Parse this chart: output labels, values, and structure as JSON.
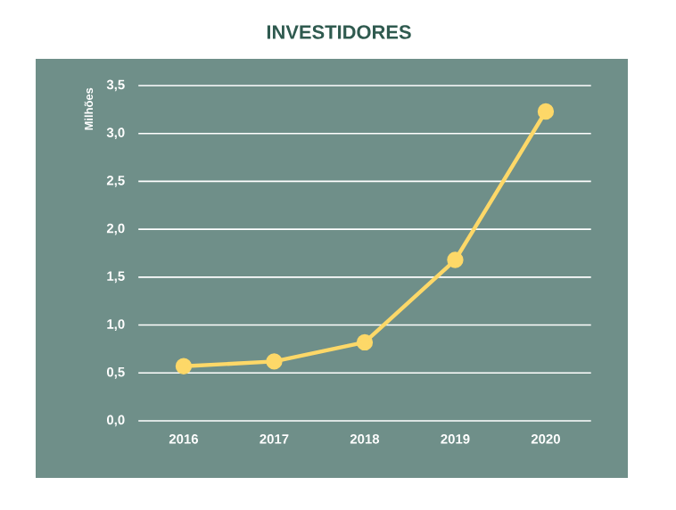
{
  "chart_data": {
    "type": "line",
    "title": "INVESTIDORES",
    "ylabel": "Milhões",
    "categories": [
      "2016",
      "2017",
      "2018",
      "2019",
      "2020"
    ],
    "series": [
      {
        "color": "#fdd868",
        "values": [
          0.57,
          0.62,
          0.82,
          1.68,
          3.23
        ]
      }
    ],
    "ylim": [
      0,
      3.5
    ],
    "yticks": [
      {
        "value": 0,
        "label": "0,0"
      },
      {
        "value": 0.5,
        "label": "0,5"
      },
      {
        "value": 1,
        "label": "1,0"
      },
      {
        "value": 1.5,
        "label": "1,5"
      },
      {
        "value": 2,
        "label": "2,0"
      },
      {
        "value": 2.5,
        "label": "2,5"
      },
      {
        "value": 3,
        "label": "3,0"
      },
      {
        "value": 3.5,
        "label": "3,5"
      }
    ],
    "grid": "y",
    "marker": "circle",
    "line_style": "solid"
  }
}
